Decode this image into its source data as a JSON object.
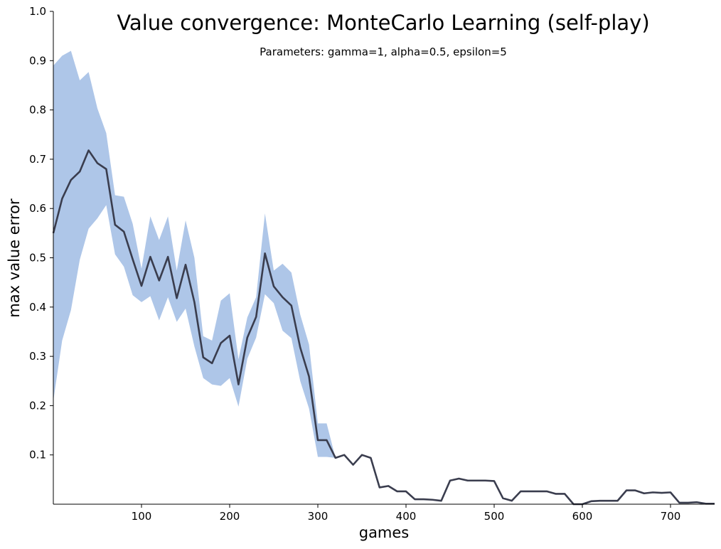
{
  "chart_data": {
    "type": "line",
    "title": "Value convergence: MonteCarlo Learning (self-play)",
    "subtitle": "Parameters: gamma=1, alpha=0.5, epsilon=5",
    "xlabel": "games",
    "ylabel": "max value error",
    "xlim": [
      0,
      750
    ],
    "ylim": [
      0,
      1.0
    ],
    "xticks": [
      100,
      200,
      300,
      400,
      500,
      600,
      700
    ],
    "xtick_labels": [
      "100",
      "200",
      "300",
      "400",
      "500",
      "600",
      "700"
    ],
    "yticks": [
      0.1,
      0.2,
      0.3,
      0.4,
      0.5,
      0.6,
      0.7,
      0.8,
      0.9,
      1.0
    ],
    "ytick_labels": [
      "0.1",
      "0.2",
      "0.3",
      "0.4",
      "0.5",
      "0.6",
      "0.7",
      "0.8",
      "0.9",
      "1.0"
    ],
    "grid": false,
    "colors": {
      "line": "#3a3d4e",
      "band": "#aec6e8"
    },
    "x": [
      0,
      10,
      20,
      30,
      40,
      50,
      60,
      70,
      80,
      90,
      100,
      110,
      120,
      130,
      140,
      150,
      160,
      170,
      180,
      190,
      200,
      210,
      220,
      230,
      240,
      250,
      260,
      270,
      280,
      290,
      300,
      310,
      320,
      330,
      340,
      350,
      360,
      370,
      380,
      390,
      400,
      410,
      420,
      430,
      440,
      450,
      460,
      470,
      480,
      490,
      500,
      510,
      520,
      530,
      540,
      550,
      560,
      570,
      580,
      590,
      600,
      610,
      620,
      630,
      640,
      650,
      660,
      670,
      680,
      690,
      700,
      710,
      720,
      730,
      740,
      750
    ],
    "mean": [
      0.55,
      0.62,
      0.658,
      0.675,
      0.718,
      0.692,
      0.68,
      0.567,
      0.553,
      0.497,
      0.443,
      0.502,
      0.454,
      0.502,
      0.418,
      0.486,
      0.41,
      0.298,
      0.286,
      0.327,
      0.342,
      0.243,
      0.338,
      0.38,
      0.509,
      0.442,
      0.42,
      0.403,
      0.318,
      0.259,
      0.13,
      0.13,
      0.094,
      0.1,
      0.08,
      0.1,
      0.094,
      0.034,
      0.037,
      0.026,
      0.026,
      0.01,
      0.01,
      0.009,
      0.007,
      0.048,
      0.052,
      0.048,
      0.048,
      0.048,
      0.047,
      0.012,
      0.007,
      0.026,
      0.026,
      0.026,
      0.026,
      0.021,
      0.021,
      0.0,
      0.0,
      0.006,
      0.007,
      0.007,
      0.007,
      0.028,
      0.028,
      0.022,
      0.024,
      0.023,
      0.024,
      0.003,
      0.003,
      0.004,
      0.001,
      0.001
    ],
    "upper": [
      0.89,
      0.91,
      0.92,
      0.86,
      0.877,
      0.803,
      0.753,
      0.627,
      0.624,
      0.569,
      0.478,
      0.584,
      0.536,
      0.584,
      0.474,
      0.576,
      0.5,
      0.341,
      0.332,
      0.413,
      0.428,
      0.294,
      0.379,
      0.42,
      0.59,
      0.474,
      0.488,
      0.47,
      0.385,
      0.324,
      0.164,
      0.164,
      0.094,
      0.1,
      0.08,
      0.1,
      0.094,
      0.034,
      0.037,
      0.026,
      0.026,
      0.01,
      0.01,
      0.009,
      0.007,
      0.048,
      0.052,
      0.048,
      0.048,
      0.048,
      0.047,
      0.012,
      0.007,
      0.026,
      0.026,
      0.026,
      0.026,
      0.021,
      0.021,
      0.0,
      0.0,
      0.006,
      0.007,
      0.007,
      0.007,
      0.028,
      0.028,
      0.022,
      0.024,
      0.023,
      0.024,
      0.003,
      0.003,
      0.004,
      0.001,
      0.001
    ],
    "lower": [
      0.21,
      0.332,
      0.394,
      0.496,
      0.559,
      0.58,
      0.607,
      0.507,
      0.482,
      0.424,
      0.41,
      0.422,
      0.373,
      0.42,
      0.37,
      0.397,
      0.32,
      0.256,
      0.243,
      0.24,
      0.256,
      0.198,
      0.295,
      0.338,
      0.426,
      0.408,
      0.352,
      0.337,
      0.25,
      0.194,
      0.096,
      0.096,
      0.094,
      0.1,
      0.08,
      0.1,
      0.094,
      0.034,
      0.037,
      0.026,
      0.026,
      0.01,
      0.01,
      0.009,
      0.007,
      0.048,
      0.052,
      0.048,
      0.048,
      0.048,
      0.047,
      0.012,
      0.007,
      0.026,
      0.026,
      0.026,
      0.026,
      0.021,
      0.021,
      0.0,
      0.0,
      0.006,
      0.007,
      0.007,
      0.007,
      0.028,
      0.028,
      0.022,
      0.024,
      0.023,
      0.024,
      0.003,
      0.003,
      0.004,
      0.001,
      0.001
    ]
  }
}
